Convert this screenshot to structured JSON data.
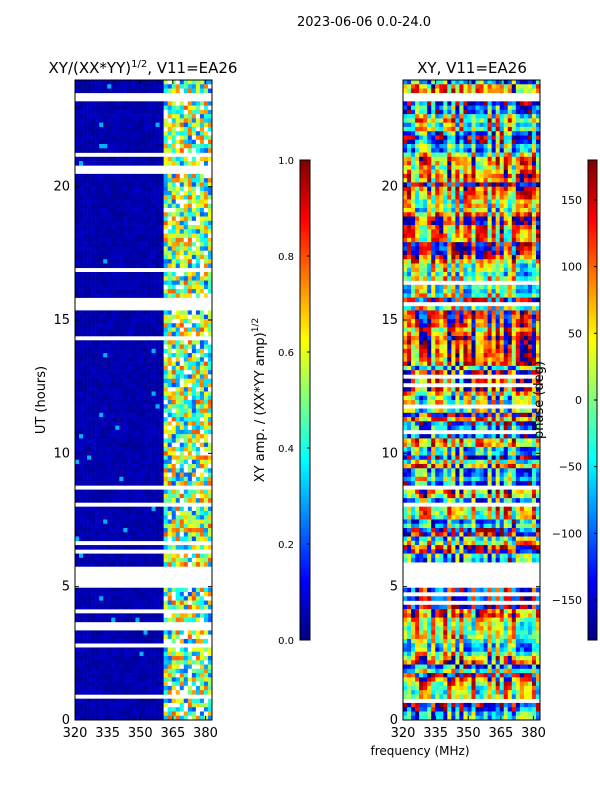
{
  "suptitle": "2023-06-06 0.0-24.0",
  "chart_data": [
    {
      "type": "heatmap",
      "title": "XY/(XX*YY)",
      "title_sup": "1/2",
      "title_suffix": ", V11=EA26",
      "xlabel": "",
      "ylabel": "UT (hours)",
      "xlim": [
        320,
        383
      ],
      "ylim": [
        0,
        24
      ],
      "xticks": [
        320,
        335,
        350,
        365,
        380
      ],
      "yticks": [
        0,
        5,
        10,
        15,
        20
      ],
      "background_region": {
        "x_range": [
          320,
          360
        ],
        "description": "low amplitude (near 0)"
      },
      "active_region": {
        "x_range": [
          360,
          383
        ],
        "value_range": [
          0.2,
          0.8
        ]
      },
      "gaps_hours": [
        [
          23.15,
          23.45
        ],
        [
          15.45,
          15.75
        ],
        [
          4.95,
          5.7
        ]
      ],
      "colorbar": {
        "label": "XY amp. / (XX*YY amp)",
        "label_sup": "1/2",
        "range": [
          0.0,
          1.0
        ],
        "ticks": [
          "0.0",
          "0.2",
          "0.4",
          "0.6",
          "0.8",
          "1.0"
        ],
        "tick_values": [
          0.0,
          0.2,
          0.4,
          0.6,
          0.8,
          1.0
        ]
      }
    },
    {
      "type": "heatmap",
      "title": "XY, V11=EA26",
      "xlabel": "frequency (MHz)",
      "ylabel": "",
      "xlim": [
        320,
        383
      ],
      "ylim": [
        0,
        24
      ],
      "xticks": [
        320,
        335,
        350,
        365,
        380
      ],
      "yticks": [
        0,
        5,
        10,
        15,
        20
      ],
      "value_range": [
        -180,
        180
      ],
      "gaps_hours": [
        [
          23.15,
          23.45
        ],
        [
          15.45,
          15.75
        ],
        [
          4.95,
          5.7
        ]
      ],
      "colorbar": {
        "label": "phase (deg)",
        "range": [
          -180,
          180
        ],
        "ticks": [
          "−150",
          "−100",
          "−50",
          "0",
          "50",
          "100",
          "150"
        ],
        "tick_values": [
          -150,
          -100,
          -50,
          0,
          50,
          100,
          150
        ]
      }
    }
  ]
}
